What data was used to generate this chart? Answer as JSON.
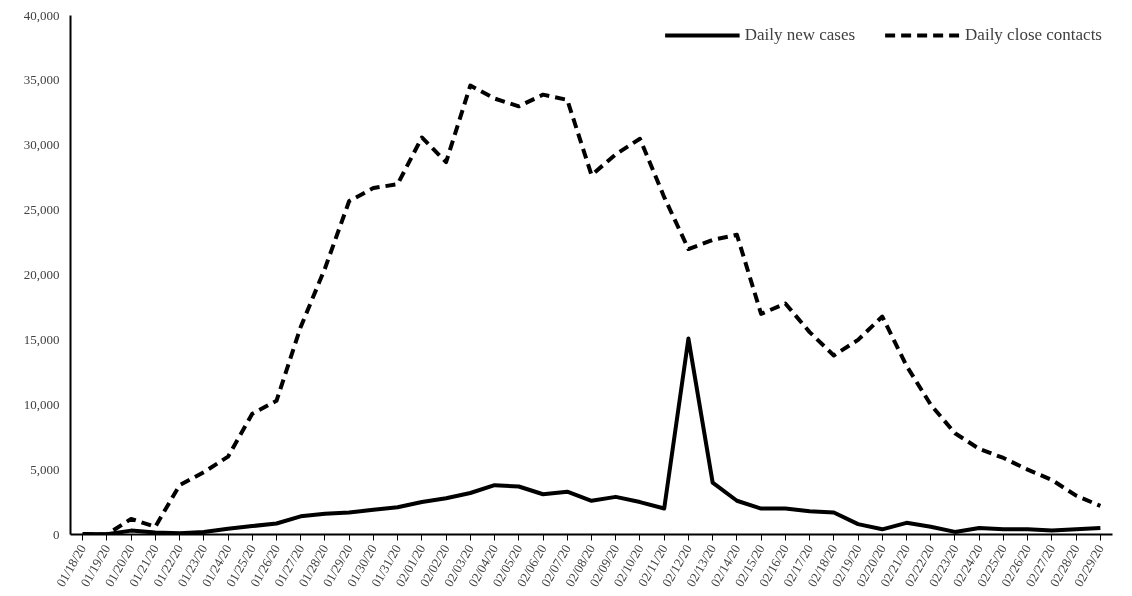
{
  "chart_data": {
    "type": "line",
    "categories": [
      "01/18/20",
      "01/19/20",
      "01/20/20",
      "01/21/20",
      "01/22/20",
      "01/23/20",
      "01/24/20",
      "01/25/20",
      "01/26/20",
      "01/27/20",
      "01/28/20",
      "01/29/20",
      "01/30/20",
      "01/31/20",
      "02/01/20",
      "02/02/20",
      "02/03/20",
      "02/04/20",
      "02/05/20",
      "02/06/20",
      "02/07/20",
      "02/08/20",
      "02/09/20",
      "02/10/20",
      "02/11/20",
      "02/12/20",
      "02/13/20",
      "02/14/20",
      "02/15/20",
      "02/16/20",
      "02/17/20",
      "02/18/20",
      "02/19/20",
      "02/20/20",
      "02/21/20",
      "02/22/20",
      "02/23/20",
      "02/24/20",
      "02/25/20",
      "02/26/20",
      "02/27/20",
      "02/28/20",
      "02/29/20"
    ],
    "series": [
      {
        "name": "Daily new cases",
        "color": "#000000",
        "line_style": "solid",
        "values": [
          40,
          20,
          300,
          150,
          100,
          200,
          450,
          650,
          850,
          1400,
          1600,
          1700,
          1900,
          2100,
          2500,
          2800,
          3200,
          3800,
          3700,
          3100,
          3300,
          2600,
          2900,
          2500,
          2000,
          15100,
          4000,
          2600,
          2000,
          2000,
          1800,
          1700,
          800,
          400,
          900,
          600,
          200,
          500,
          400,
          400,
          300,
          400,
          500
        ]
      },
      {
        "name": "Daily close contacts",
        "color": "#000000",
        "line_style": "dashed",
        "values": [
          0,
          0,
          1200,
          600,
          3800,
          4800,
          6000,
          9300,
          10300,
          16000,
          20500,
          25700,
          26700,
          27000,
          30600,
          28700,
          34600,
          33600,
          33000,
          33900,
          33500,
          27700,
          29300,
          30500,
          26000,
          22000,
          22700,
          23100,
          17000,
          17800,
          15600,
          13800,
          15000,
          16800,
          13000,
          10000,
          7800,
          6600,
          5900,
          5000,
          4200,
          3000,
          2200
        ]
      }
    ],
    "ylim": [
      0,
      40000
    ],
    "yticks": [
      0,
      {
        "value": 5000,
        "label": "5,000"
      },
      {
        "value": 10000,
        "label": "10,000"
      },
      {
        "value": 15000,
        "label": "15,000"
      },
      {
        "value": 20000,
        "label": "20,000"
      },
      {
        "value": 25000,
        "label": "25,000"
      },
      {
        "value": 30000,
        "label": "30,000"
      },
      {
        "value": 35000,
        "label": "35,000"
      },
      {
        "value": 40000,
        "label": "40,000"
      }
    ],
    "grid": false,
    "legend": "top right",
    "marker": "none"
  }
}
